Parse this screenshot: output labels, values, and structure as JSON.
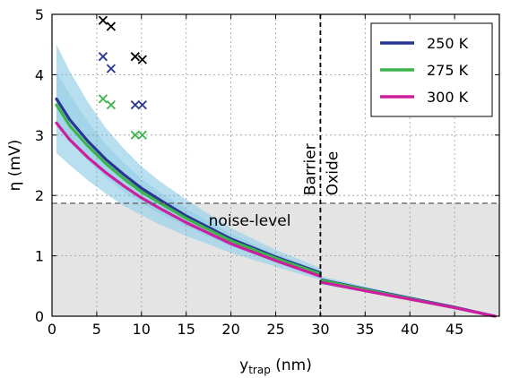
{
  "chart_data": {
    "type": "line",
    "xlabel": "y",
    "xlabel_sub": "trap",
    "xlabel_unit": " (nm)",
    "ylabel": "η (mV)",
    "xlim": [
      0,
      50
    ],
    "ylim": [
      0,
      5
    ],
    "xticks": [
      "0",
      "5",
      "10",
      "15",
      "20",
      "25",
      "30",
      "35",
      "40",
      "45"
    ],
    "yticks": [
      "0",
      "1",
      "2",
      "3",
      "4",
      "5"
    ],
    "grid": true,
    "legend_position": "top-right",
    "series": [
      {
        "name": "250 K",
        "color": "#283593",
        "x": [
          0.5,
          2,
          4,
          6,
          8,
          10,
          12,
          15,
          20,
          25,
          30,
          30.2,
          35,
          40,
          45,
          49.5
        ],
        "y": [
          3.6,
          3.25,
          2.9,
          2.6,
          2.35,
          2.12,
          1.93,
          1.66,
          1.28,
          0.98,
          0.72,
          0.6,
          0.45,
          0.3,
          0.15,
          0.0
        ]
      },
      {
        "name": "275 K",
        "color": "#3cb44b",
        "x": [
          0.5,
          2,
          4,
          6,
          8,
          10,
          12,
          15,
          20,
          25,
          30,
          30.2,
          35,
          40,
          45,
          49.5
        ],
        "y": [
          3.5,
          3.15,
          2.82,
          2.53,
          2.28,
          2.06,
          1.88,
          1.62,
          1.25,
          0.96,
          0.7,
          0.59,
          0.44,
          0.29,
          0.14,
          0.0
        ]
      },
      {
        "name": "300 K",
        "color": "#cc1e9e",
        "x": [
          0.5,
          2,
          4,
          6,
          8,
          10,
          12,
          15,
          20,
          25,
          30,
          30.2,
          35,
          40,
          45,
          49.5
        ],
        "y": [
          3.2,
          2.92,
          2.63,
          2.38,
          2.16,
          1.96,
          1.79,
          1.55,
          1.2,
          0.92,
          0.66,
          0.56,
          0.42,
          0.28,
          0.14,
          0.0
        ]
      }
    ],
    "uncertainty_band": {
      "color": "#9fd4ea",
      "x": [
        0.5,
        2,
        4,
        6,
        8,
        10,
        12,
        15,
        20,
        25,
        30,
        30.2,
        35,
        40,
        45,
        49.5
      ],
      "y_low": [
        2.7,
        2.5,
        2.25,
        2.03,
        1.83,
        1.67,
        1.52,
        1.33,
        1.05,
        0.82,
        0.6,
        0.52,
        0.4,
        0.27,
        0.13,
        0.0
      ],
      "y_high": [
        4.5,
        4.05,
        3.55,
        3.12,
        2.78,
        2.48,
        2.24,
        1.93,
        1.46,
        1.1,
        0.8,
        0.66,
        0.49,
        0.33,
        0.16,
        0.0
      ]
    },
    "markers": [
      {
        "series": "black",
        "color": "#000000",
        "points": [
          [
            5.7,
            4.9
          ],
          [
            6.6,
            4.8
          ],
          [
            9.3,
            4.3
          ],
          [
            10.1,
            4.25
          ]
        ]
      },
      {
        "series": "250 K",
        "color": "#283593",
        "points": [
          [
            5.7,
            4.3
          ],
          [
            6.6,
            4.1
          ],
          [
            9.3,
            3.5
          ],
          [
            10.1,
            3.5
          ]
        ]
      },
      {
        "series": "275 K",
        "color": "#3cb44b",
        "points": [
          [
            5.7,
            3.6
          ],
          [
            6.6,
            3.5
          ],
          [
            9.3,
            3.0
          ],
          [
            10.1,
            3.0
          ]
        ]
      }
    ],
    "noise_level": {
      "y": 1.87,
      "label": "noise-level",
      "fill": "#e4e4e4"
    },
    "divider": {
      "x": 30,
      "left_label": "Barrier",
      "right_label": "Oxide"
    }
  }
}
